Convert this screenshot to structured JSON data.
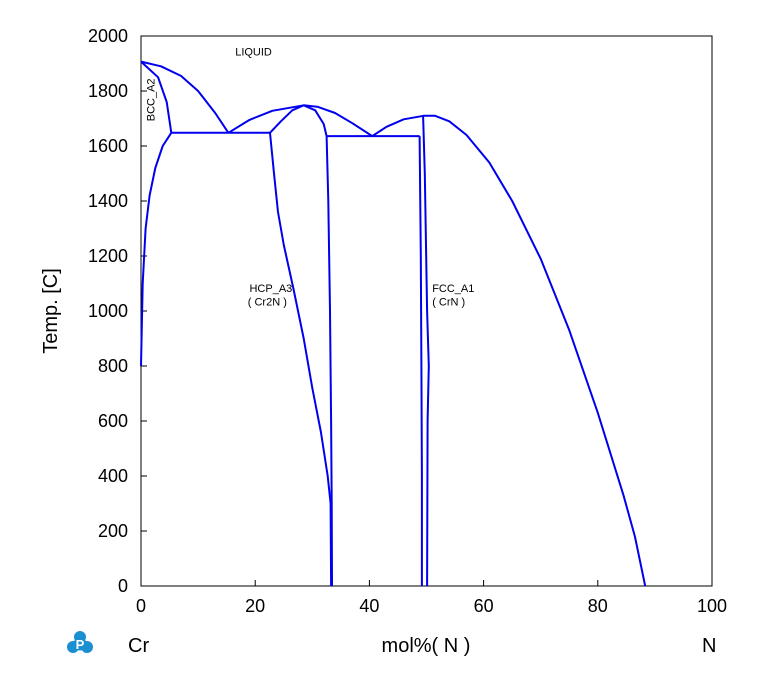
{
  "chart_data": {
    "type": "line",
    "xlabel": "mol%(  N  )",
    "ylabel": "Temp.  [C]",
    "xlim": [
      0,
      100
    ],
    "ylim": [
      0,
      2000
    ],
    "grid": false,
    "x_ticks": [
      "0",
      "20",
      "40",
      "60",
      "80",
      "100"
    ],
    "y_ticks": [
      "0",
      "200",
      "400",
      "600",
      "800",
      "1000",
      "1200",
      "1400",
      "1600",
      "1800",
      "2000"
    ],
    "x_left_component": "Cr",
    "x_right_component": "N",
    "line_color": "#0000ee",
    "region_labels": [
      {
        "text": "LIQUID",
        "x": 16.5,
        "y": 1930
      },
      {
        "text": "BCC_A2",
        "x": 2.4,
        "y": 1690,
        "rotated": true
      },
      {
        "text": "HCP_A3",
        "x": 19,
        "y": 1070
      },
      {
        "text": "( Cr2N )",
        "x": 18.7,
        "y": 1020
      },
      {
        "text": "FCC_A1",
        "x": 51,
        "y": 1070
      },
      {
        "text": "( CrN )",
        "x": 51,
        "y": 1020
      }
    ],
    "series": [
      {
        "values": [
          [
            0,
            1907
          ],
          [
            3,
            1850
          ],
          [
            4.5,
            1760
          ],
          [
            5.3,
            1648
          ]
        ]
      },
      {
        "values": [
          [
            0,
            1907
          ],
          [
            3.5,
            1890
          ],
          [
            7,
            1855
          ],
          [
            10,
            1800
          ],
          [
            13,
            1720
          ],
          [
            15.3,
            1648
          ]
        ]
      },
      {
        "values": [
          [
            0,
            800
          ],
          [
            0.3,
            1100
          ],
          [
            0.8,
            1300
          ],
          [
            1.5,
            1420
          ],
          [
            2.5,
            1520
          ],
          [
            3.8,
            1600
          ],
          [
            5.3,
            1648
          ]
        ]
      },
      {
        "values": [
          [
            5.3,
            1648
          ],
          [
            22.6,
            1648
          ]
        ]
      },
      {
        "values": [
          [
            15.3,
            1648
          ],
          [
            19,
            1695
          ],
          [
            23,
            1728
          ],
          [
            28.5,
            1748
          ],
          [
            31,
            1742
          ],
          [
            34,
            1720
          ],
          [
            37,
            1683
          ],
          [
            40.5,
            1636
          ]
        ]
      },
      {
        "values": [
          [
            22.6,
            1648
          ],
          [
            24.5,
            1690
          ],
          [
            26.5,
            1730
          ],
          [
            28.5,
            1748
          ]
        ]
      },
      {
        "values": [
          [
            28.5,
            1748
          ],
          [
            30.5,
            1730
          ],
          [
            32,
            1680
          ],
          [
            32.5,
            1636
          ]
        ]
      },
      {
        "values": [
          [
            22.6,
            1648
          ],
          [
            23.3,
            1500
          ],
          [
            24,
            1360
          ],
          [
            25,
            1240
          ],
          [
            26.7,
            1080
          ],
          [
            28.5,
            900
          ],
          [
            30,
            720
          ],
          [
            31.5,
            560
          ],
          [
            32.7,
            400
          ],
          [
            33.2,
            300
          ],
          [
            33.3,
            0
          ]
        ]
      },
      {
        "values": [
          [
            32.5,
            1636
          ],
          [
            32.8,
            1400
          ],
          [
            33.1,
            1000
          ],
          [
            33.3,
            600
          ],
          [
            33.4,
            300
          ],
          [
            33.45,
            0
          ]
        ]
      },
      {
        "values": [
          [
            32.5,
            1636
          ],
          [
            48.8,
            1636
          ]
        ]
      },
      {
        "values": [
          [
            40.5,
            1636
          ],
          [
            43,
            1670
          ],
          [
            46,
            1697
          ],
          [
            49.5,
            1710
          ]
        ]
      },
      {
        "values": [
          [
            48.8,
            1636
          ],
          [
            49,
            1200
          ],
          [
            49.1,
            800
          ],
          [
            49.2,
            400
          ],
          [
            49.2,
            0
          ]
        ]
      },
      {
        "values": [
          [
            49.4,
            1710
          ],
          [
            49.7,
            1500
          ],
          [
            50.1,
            1000
          ],
          [
            50.4,
            800
          ],
          [
            50.2,
            600
          ],
          [
            50.1,
            0
          ]
        ]
      },
      {
        "values": [
          [
            49.4,
            1710
          ],
          [
            51.5,
            1710
          ],
          [
            54,
            1690
          ],
          [
            57,
            1640
          ],
          [
            61,
            1540
          ],
          [
            65,
            1400
          ],
          [
            70,
            1190
          ],
          [
            75,
            930
          ],
          [
            80,
            630
          ],
          [
            84.5,
            330
          ],
          [
            86.5,
            180
          ],
          [
            88.3,
            0
          ]
        ]
      }
    ]
  }
}
